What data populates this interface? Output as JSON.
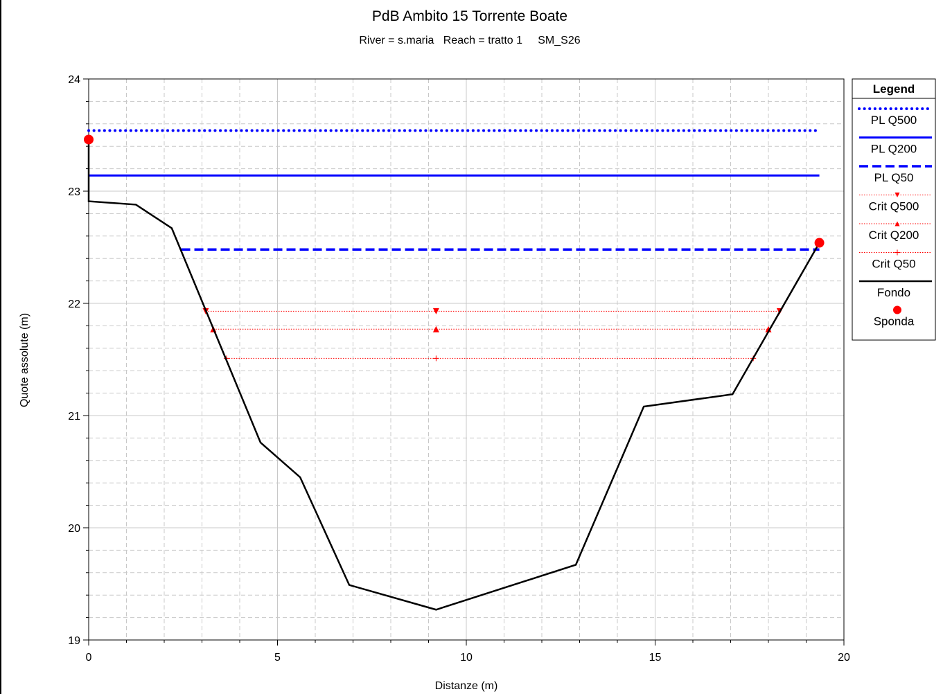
{
  "chart_data": {
    "type": "line",
    "title": "PdB Ambito 15 Torrente Boate",
    "subtitle": "River = s.maria   Reach = tratto 1     SM_S26",
    "xlabel": "Distanze (m)",
    "ylabel": "Quote assolute (m)",
    "xlim": [
      0,
      20
    ],
    "ylim": [
      19,
      24
    ],
    "xticks": [
      0,
      5,
      10,
      15,
      20
    ],
    "yticks": [
      19,
      20,
      21,
      22,
      23,
      24
    ],
    "grid": true,
    "legend": {
      "title": "Legend",
      "position": "right",
      "entries": [
        "PL Q500",
        "PL Q200",
        "PL Q50",
        "Crit Q500",
        "Crit Q200",
        "Crit Q50",
        "Fondo",
        "Sponda"
      ]
    },
    "series": [
      {
        "name": "PL Q500",
        "style": "dotted",
        "color": "#0000ff",
        "x": [
          0,
          19.35
        ],
        "y": [
          23.54,
          23.54
        ]
      },
      {
        "name": "PL Q200",
        "style": "solid",
        "color": "#0000ff",
        "x": [
          0,
          19.35
        ],
        "y": [
          23.14,
          23.14
        ]
      },
      {
        "name": "PL Q50",
        "style": "dashed",
        "color": "#0000ff",
        "x": [
          2.45,
          19.35
        ],
        "y": [
          22.48,
          22.48
        ]
      },
      {
        "name": "Crit Q500",
        "style": "dotted-marker",
        "marker": "triangle-down",
        "color": "#ff0000",
        "x": [
          3.1,
          9.2,
          18.3
        ],
        "y": [
          21.93,
          21.93,
          21.93
        ]
      },
      {
        "name": "Crit Q200",
        "style": "dotted-marker",
        "marker": "triangle-up",
        "color": "#ff0000",
        "x": [
          3.3,
          9.2,
          18.0
        ],
        "y": [
          21.77,
          21.77,
          21.77
        ]
      },
      {
        "name": "Crit Q50",
        "style": "dotted-marker",
        "marker": "plus",
        "color": "#ff0000",
        "x": [
          3.65,
          9.2,
          17.6
        ],
        "y": [
          21.51,
          21.51,
          21.51
        ]
      },
      {
        "name": "Fondo",
        "style": "solid",
        "color": "#000000",
        "x": [
          0,
          0,
          1.25,
          2.2,
          4.55,
          5.6,
          6.9,
          9.2,
          12.9,
          14.7,
          17.05,
          19.35
        ],
        "y": [
          23.46,
          22.91,
          22.88,
          22.67,
          20.76,
          20.45,
          19.49,
          19.27,
          19.67,
          21.08,
          21.19,
          22.54
        ]
      },
      {
        "name": "Sponda",
        "style": "marker",
        "marker": "circle",
        "color": "#ff0000",
        "x": [
          0,
          19.35
        ],
        "y": [
          23.46,
          22.54
        ]
      }
    ]
  }
}
